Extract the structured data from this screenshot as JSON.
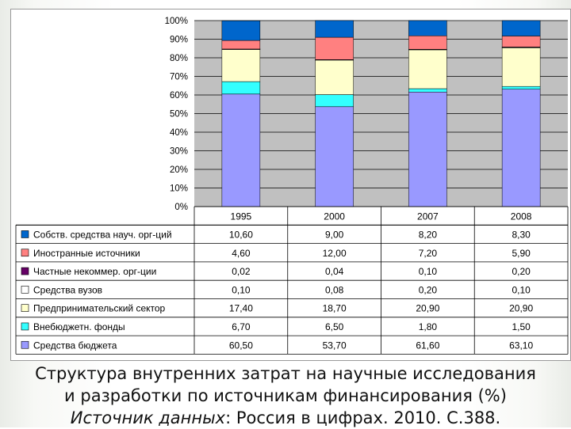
{
  "chart_data": {
    "type": "bar",
    "stacked": true,
    "categories": [
      "1995",
      "2000",
      "2007",
      "2008"
    ],
    "y_ticks": [
      "0%",
      "10%",
      "20%",
      "30%",
      "40%",
      "50%",
      "60%",
      "70%",
      "80%",
      "90%",
      "100%"
    ],
    "ylim": [
      0,
      100
    ],
    "grid": true,
    "legend": "table-left",
    "series": [
      {
        "name": "Средства бюджета",
        "color": "#9999ff",
        "values": [
          60.5,
          53.7,
          61.6,
          63.1
        ],
        "labels": [
          "60,50",
          "53,70",
          "61,60",
          "63,10"
        ]
      },
      {
        "name": "Внебюджетн. фонды",
        "color": "#33ffff",
        "values": [
          6.7,
          6.5,
          1.8,
          1.5
        ],
        "labels": [
          "6,70",
          "6,50",
          "1,80",
          "1,50"
        ]
      },
      {
        "name": "Предпринимательский сектор",
        "color": "#ffffcc",
        "values": [
          17.4,
          18.7,
          20.9,
          20.9
        ],
        "labels": [
          "17,40",
          "18,70",
          "20,90",
          "20,90"
        ]
      },
      {
        "name": "Средства вузов",
        "color": "#ffffff",
        "values": [
          0.1,
          0.08,
          0.2,
          0.1
        ],
        "labels": [
          "0,10",
          "0,08",
          "0,20",
          "0,10"
        ]
      },
      {
        "name": "Частные некоммер. орг-ции",
        "color": "#660066",
        "values": [
          0.02,
          0.04,
          0.1,
          0.2
        ],
        "labels": [
          "0,02",
          "0,04",
          "0,10",
          "0,20"
        ]
      },
      {
        "name": "Иностранные источники",
        "color": "#ff8080",
        "values": [
          4.6,
          12.0,
          7.2,
          5.9
        ],
        "labels": [
          "4,60",
          "12,00",
          "7,20",
          "5,90"
        ]
      },
      {
        "name": "Собств. средства науч. орг-ций",
        "color": "#0066cc",
        "values": [
          10.6,
          9.0,
          8.2,
          8.3
        ],
        "labels": [
          "10,60",
          "9,00",
          "8,20",
          "8,30"
        ]
      }
    ]
  },
  "caption": {
    "line1": "Структура внутренних затрат на научные исследования",
    "line2": "и разработки  по источникам финансирования (%)",
    "source_label": "Источник данных",
    "source_rest": ": Россия в цифрах. 2010. С.388."
  }
}
